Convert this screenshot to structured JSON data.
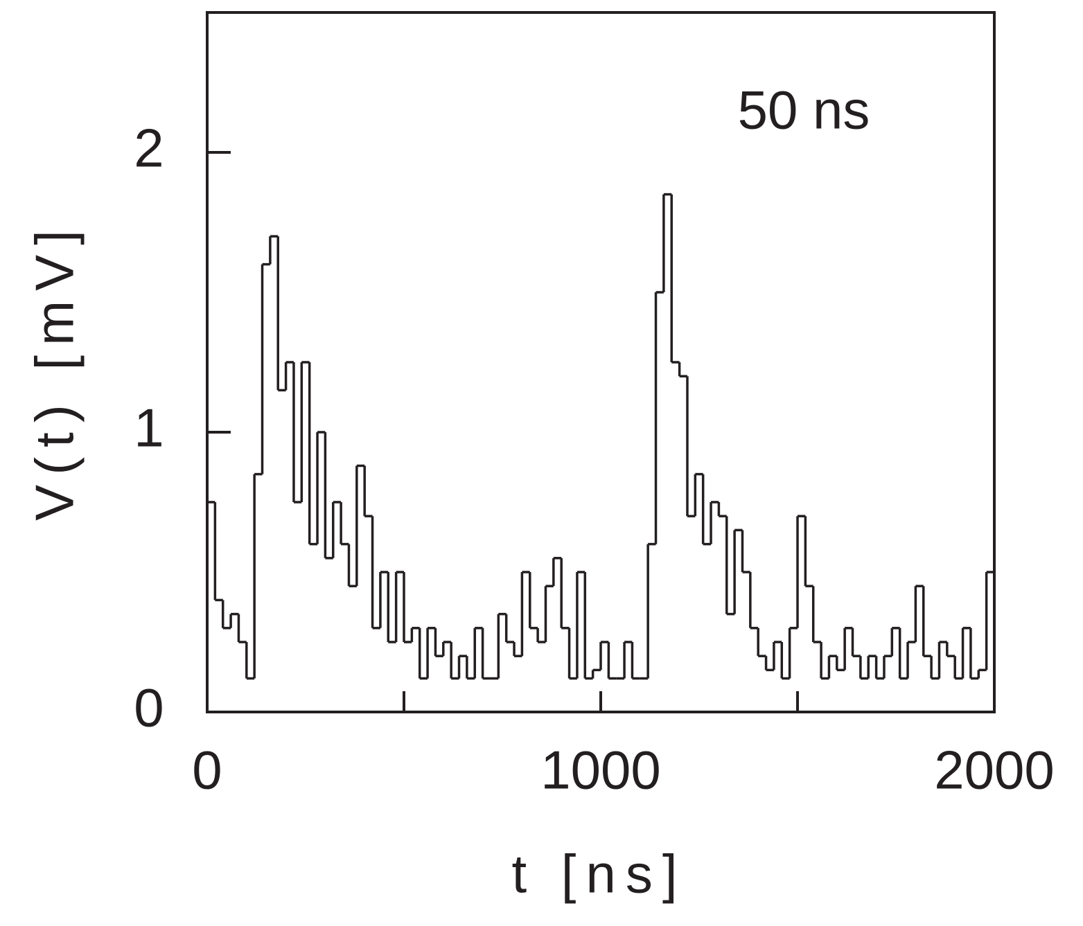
{
  "chart_data": {
    "type": "step",
    "xlabel": "t [ns]",
    "ylabel": "V(t) [mV]",
    "annotation": "50 ns",
    "color": "#231f20",
    "xlim": [
      0,
      2000
    ],
    "ylim": [
      0,
      2.5
    ],
    "xticks": [
      0,
      1000,
      2000
    ],
    "xminorticks": [
      500,
      1500
    ],
    "yticks": [
      0,
      1,
      2
    ],
    "x": [
      0,
      20,
      40,
      60,
      80,
      100,
      120,
      140,
      160,
      180,
      200,
      220,
      240,
      260,
      280,
      300,
      320,
      340,
      360,
      380,
      400,
      420,
      440,
      460,
      480,
      500,
      520,
      540,
      560,
      580,
      600,
      620,
      640,
      660,
      680,
      700,
      720,
      740,
      760,
      780,
      800,
      820,
      840,
      860,
      880,
      900,
      920,
      940,
      960,
      980,
      1000,
      1020,
      1040,
      1060,
      1080,
      1100,
      1120,
      1140,
      1160,
      1180,
      1200,
      1220,
      1240,
      1260,
      1280,
      1300,
      1320,
      1340,
      1360,
      1380,
      1400,
      1420,
      1440,
      1460,
      1480,
      1500,
      1520,
      1540,
      1560,
      1580,
      1600,
      1620,
      1640,
      1660,
      1680,
      1700,
      1720,
      1740,
      1760,
      1780,
      1800,
      1820,
      1840,
      1860,
      1880,
      1900,
      1920,
      1940,
      1960,
      1980
    ],
    "values": [
      0.75,
      0.4,
      0.3,
      0.35,
      0.25,
      0.12,
      0.85,
      1.6,
      1.7,
      1.15,
      1.25,
      0.75,
      1.25,
      0.6,
      1.0,
      0.55,
      0.75,
      0.6,
      0.45,
      0.88,
      0.7,
      0.3,
      0.5,
      0.25,
      0.5,
      0.25,
      0.3,
      0.12,
      0.3,
      0.2,
      0.25,
      0.12,
      0.2,
      0.12,
      0.3,
      0.12,
      0.12,
      0.35,
      0.25,
      0.2,
      0.5,
      0.3,
      0.25,
      0.45,
      0.55,
      0.3,
      0.12,
      0.5,
      0.12,
      0.15,
      0.25,
      0.12,
      0.12,
      0.25,
      0.12,
      0.12,
      0.6,
      1.5,
      1.85,
      1.25,
      1.2,
      0.7,
      0.85,
      0.6,
      0.75,
      0.7,
      0.35,
      0.65,
      0.5,
      0.3,
      0.2,
      0.15,
      0.25,
      0.12,
      0.3,
      0.7,
      0.45,
      0.25,
      0.12,
      0.2,
      0.15,
      0.3,
      0.2,
      0.12,
      0.2,
      0.12,
      0.2,
      0.3,
      0.12,
      0.25,
      0.45,
      0.2,
      0.12,
      0.25,
      0.2,
      0.12,
      0.3,
      0.12,
      0.15,
      0.5
    ]
  }
}
